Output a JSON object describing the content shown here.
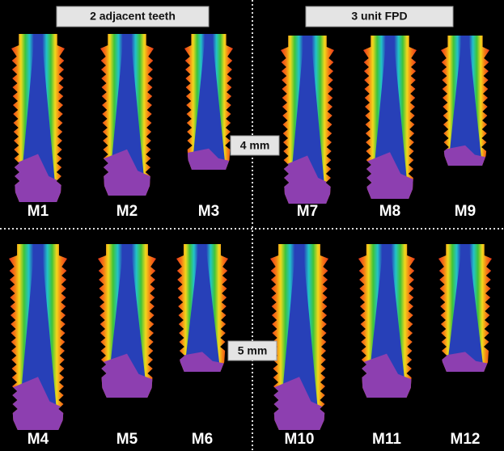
{
  "header": {
    "left": "2 adjacent teeth",
    "right": "3 unit FPD"
  },
  "lengths": [
    "4 mm",
    "5 mm"
  ],
  "models": [
    "M1",
    "M2",
    "M3",
    "M7",
    "M8",
    "M9",
    "M4",
    "M5",
    "M6",
    "M10",
    "M11",
    "M12"
  ]
}
